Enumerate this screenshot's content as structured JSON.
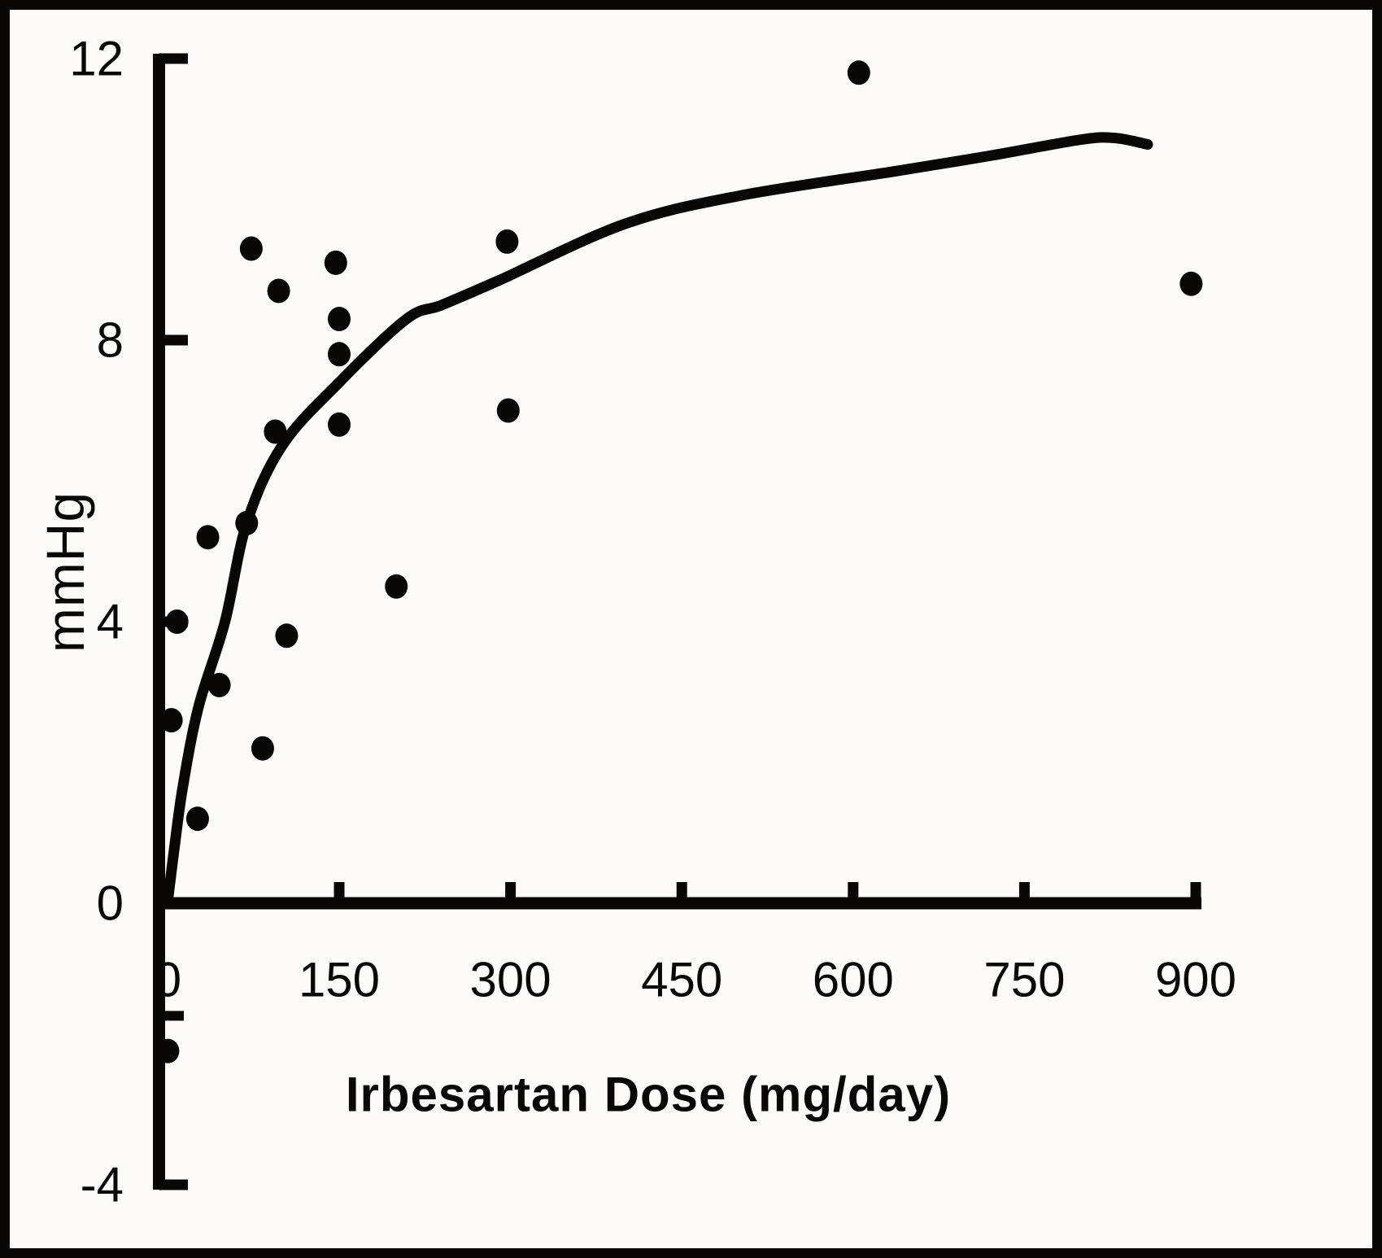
{
  "figure": {
    "background": "#fcfbf7",
    "ink_color": "#0a0806"
  },
  "chart_data": {
    "type": "scatter",
    "title": "",
    "xlabel": "Irbesartan Dose (mg/day)",
    "ylabel": "mmHg",
    "xlim": [
      0,
      905
    ],
    "ylim": [
      -4,
      12
    ],
    "grid": false,
    "legend": null,
    "x_ticks": [
      150,
      300,
      450,
      600,
      750,
      900
    ],
    "x_tick_labels": [
      "0",
      "150",
      "300",
      "450",
      "600",
      "750",
      "900"
    ],
    "x_tick_label_values": [
      0,
      150,
      300,
      450,
      600,
      750,
      900
    ],
    "y_ticks": [
      12,
      8,
      4,
      -4
    ],
    "y_minor_ticks": [
      -1.6
    ],
    "y_tick_labels": [
      "12",
      "8",
      "4",
      "0",
      "-4"
    ],
    "y_tick_label_values": [
      12,
      8,
      4,
      0,
      -4
    ],
    "points": [
      [
        73,
        9.3
      ],
      [
        147,
        9.1
      ],
      [
        97,
        8.7
      ],
      [
        150,
        8.3
      ],
      [
        150,
        7.8
      ],
      [
        94,
        6.7
      ],
      [
        150,
        6.8
      ],
      [
        69,
        5.4
      ],
      [
        35,
        5.2
      ],
      [
        8,
        4.0
      ],
      [
        104,
        3.8
      ],
      [
        200,
        4.5
      ],
      [
        45,
        3.1
      ],
      [
        3,
        2.6
      ],
      [
        83,
        2.2
      ],
      [
        26,
        1.2
      ],
      [
        0,
        -2.1
      ],
      [
        297,
        9.4
      ],
      [
        298,
        7.0
      ],
      [
        605,
        11.8
      ],
      [
        896,
        8.8
      ]
    ],
    "fit_curve": [
      [
        0,
        0.05
      ],
      [
        5,
        0.7
      ],
      [
        13,
        1.65
      ],
      [
        27,
        2.8
      ],
      [
        50,
        4.0
      ],
      [
        69,
        5.4
      ],
      [
        100,
        6.5
      ],
      [
        150,
        7.4
      ],
      [
        209,
        8.3
      ],
      [
        240,
        8.5
      ],
      [
        290,
        8.85
      ],
      [
        400,
        9.65
      ],
      [
        500,
        10.05
      ],
      [
        637,
        10.4
      ],
      [
        720,
        10.62
      ],
      [
        800,
        10.85
      ],
      [
        830,
        10.87
      ],
      [
        858,
        10.78
      ]
    ]
  }
}
